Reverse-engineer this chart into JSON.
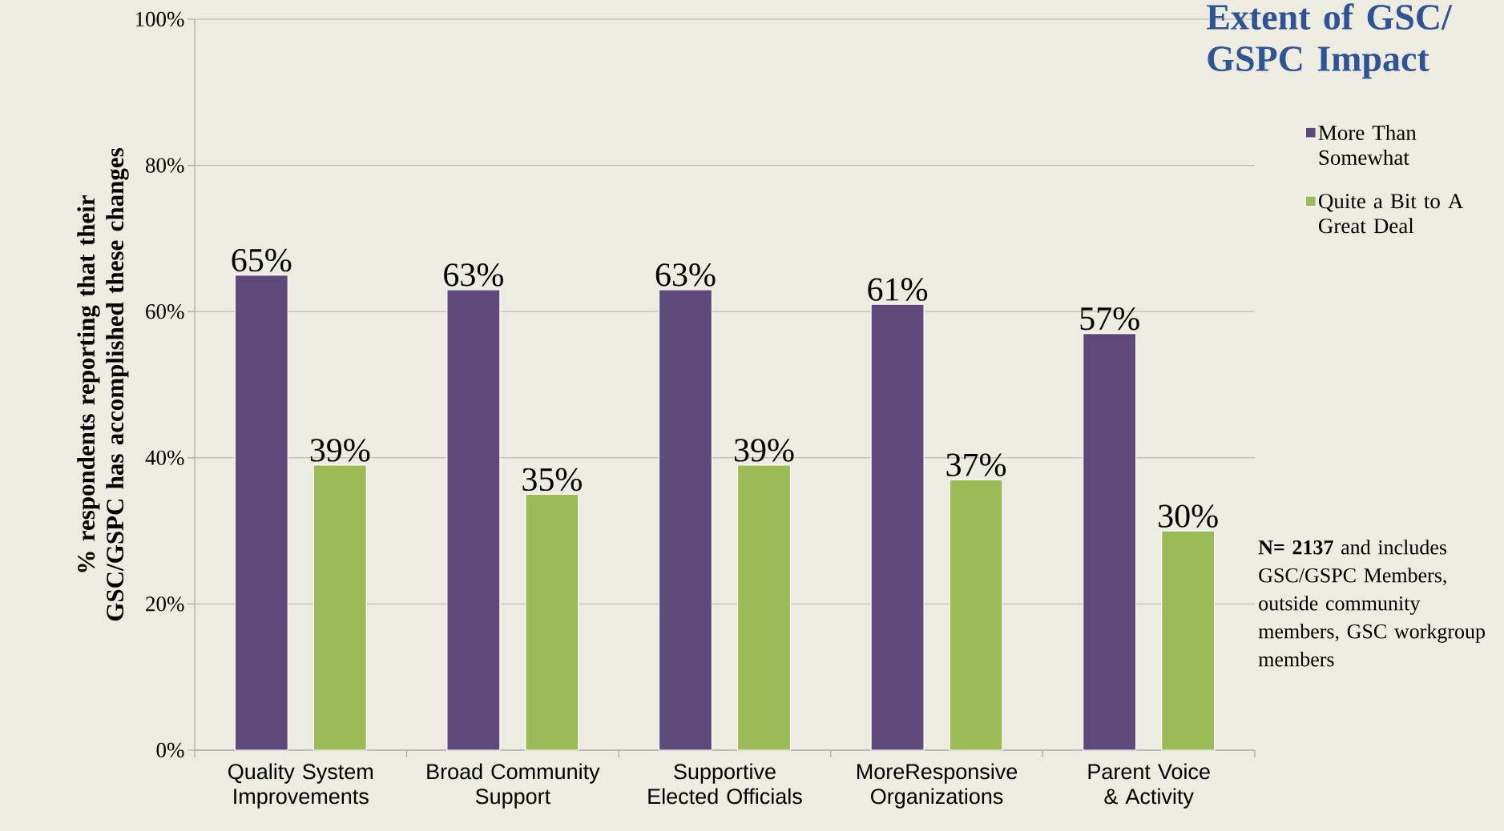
{
  "chart_data": {
    "type": "bar",
    "title": "Extent of GSC/ GSPC Impact",
    "ylabel": "% respondents reporting that their GSC/GSPC has accomplished these changes",
    "categories": [
      "Quality System Improvements",
      "Broad Community Support",
      "Supportive Elected Officials",
      "MoreResponsive Organizations",
      "Parent Voice & Activity"
    ],
    "series": [
      {
        "name": "More Than Somewhat",
        "color": "#5f497a",
        "values": [
          65,
          63,
          63,
          61,
          57
        ],
        "value_labels": [
          "65%",
          "63%",
          "63%",
          "61%",
          "57%"
        ]
      },
      {
        "name": "Quite a Bit to A Great Deal",
        "color": "#9bbb59",
        "values": [
          39,
          35,
          39,
          37,
          30
        ],
        "value_labels": [
          "39%",
          "35%",
          "39%",
          "37%",
          "30%"
        ]
      }
    ],
    "ylim": [
      0,
      100
    ],
    "yticks": [
      {
        "value": 0,
        "label": "0%"
      },
      {
        "value": 20,
        "label": "20%"
      },
      {
        "value": 40,
        "label": "40%"
      },
      {
        "value": 60,
        "label": "60%"
      },
      {
        "value": 80,
        "label": "80%"
      },
      {
        "value": 100,
        "label": "100%"
      }
    ],
    "grid": "y",
    "legend": "right",
    "annotations": [
      "**N= 2137** and includes GSC/GSPC Members, outside community members, GSC workgroup members"
    ]
  }
}
